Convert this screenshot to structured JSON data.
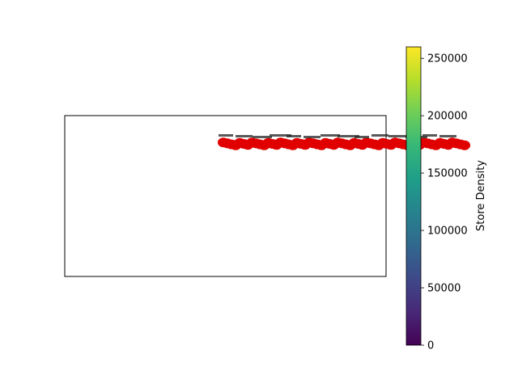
{
  "chart_data": {
    "type": "scatter",
    "title": "",
    "xlabel": "",
    "ylabel": "",
    "grid": false,
    "colorbar": {
      "label": "Store Density",
      "colormap": "viridis",
      "range": [
        0,
        260000
      ],
      "ticks": [
        0,
        50000,
        100000,
        150000,
        200000,
        250000
      ],
      "tick_labels": [
        "0",
        "50000",
        "100000",
        "150000",
        "200000",
        "250000"
      ]
    },
    "marker_color": "#e00000",
    "markers": {
      "count_estimate": 60,
      "row": "horizontal band near the top of the plot area",
      "overlapping_labels": "overlapping, unreadable text labels (partial strings visible)"
    },
    "colors": {
      "viridis": [
        "#440154",
        "#482878",
        "#3e4989",
        "#31688e",
        "#26828e",
        "#1f9e89",
        "#35b779",
        "#6ece58",
        "#b5de2b",
        "#fde725"
      ],
      "marker": "#e00000",
      "frame": "#000000"
    }
  }
}
